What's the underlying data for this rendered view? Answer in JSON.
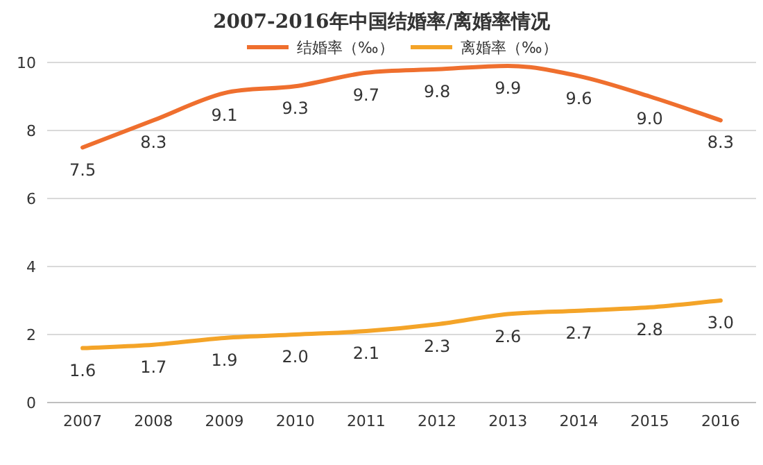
{
  "chart_data": {
    "type": "line",
    "title": "2007-2016年中国结婚率/离婚率情况",
    "categories": [
      "2007",
      "2008",
      "2009",
      "2010",
      "2011",
      "2012",
      "2013",
      "2014",
      "2015",
      "2016"
    ],
    "series": [
      {
        "name": "结婚率（‰）",
        "color": "#ef6f2e",
        "values": [
          7.5,
          8.3,
          9.1,
          9.3,
          9.7,
          9.8,
          9.9,
          9.6,
          9.0,
          8.3
        ],
        "value_labels": [
          "7.5",
          "8.3",
          "9.1",
          "9.3",
          "9.7",
          "9.8",
          "9.9",
          "9.6",
          "9.0",
          "8.3"
        ]
      },
      {
        "name": "离婚率（‰）",
        "color": "#f4a428",
        "values": [
          1.6,
          1.7,
          1.9,
          2.0,
          2.1,
          2.3,
          2.6,
          2.7,
          2.8,
          3.0
        ],
        "value_labels": [
          "1.6",
          "1.7",
          "1.9",
          "2.0",
          "2.1",
          "2.3",
          "2.6",
          "2.7",
          "2.8",
          "3.0"
        ]
      }
    ],
    "ylim": [
      0,
      10
    ],
    "yticks": [
      0,
      2,
      4,
      6,
      8,
      10
    ],
    "grid": "y",
    "legend": "top"
  }
}
